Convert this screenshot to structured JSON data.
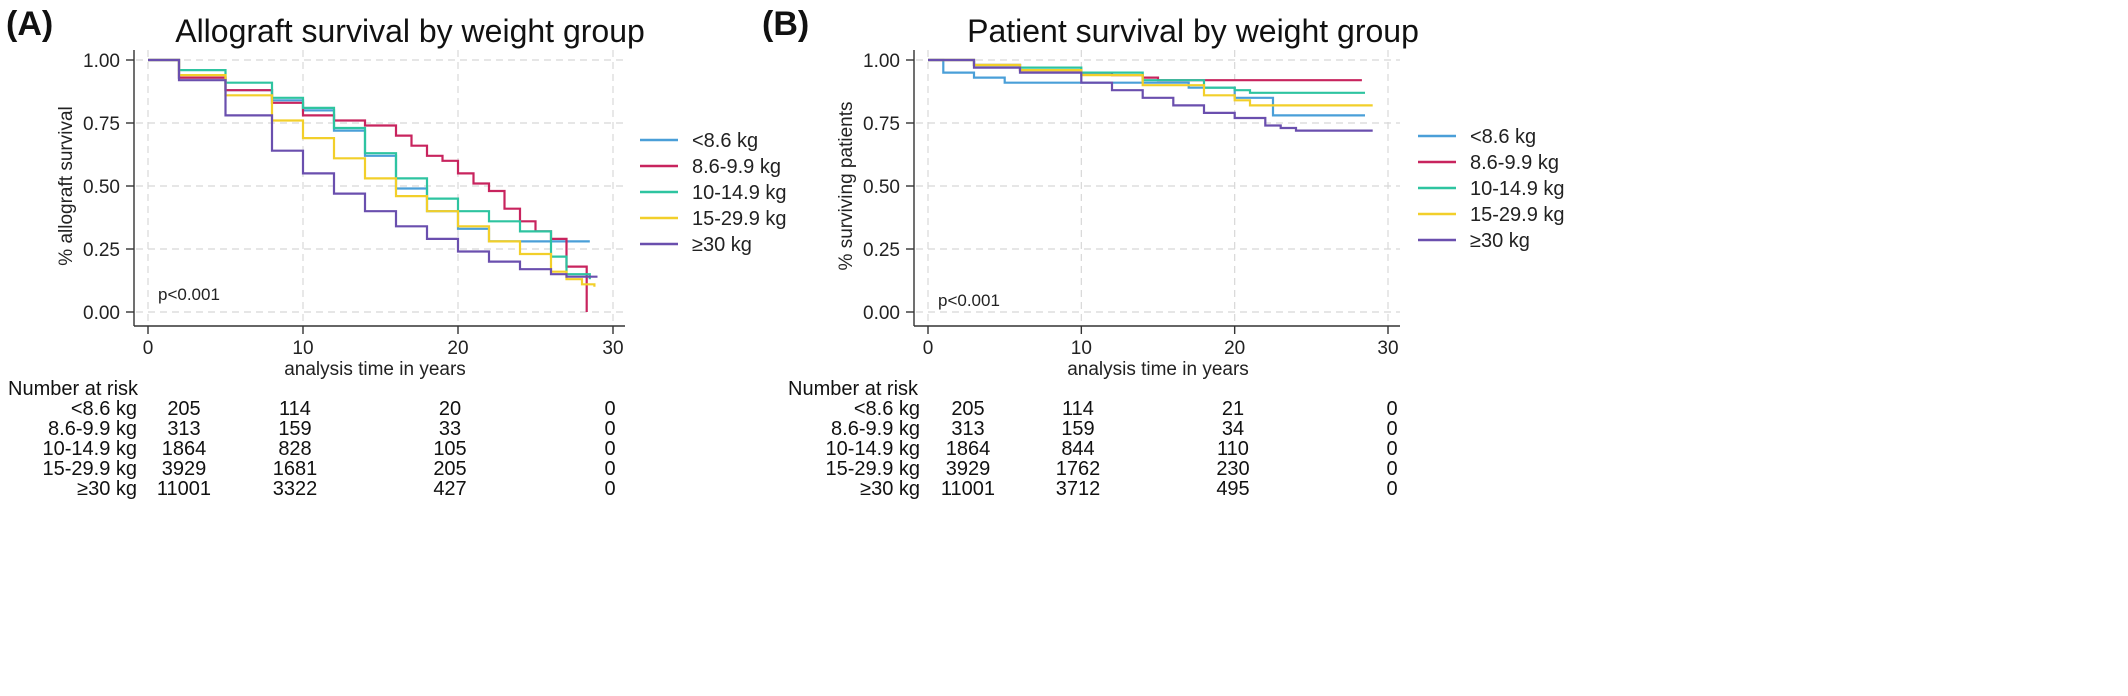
{
  "series_colors": [
    "#4a9fd8",
    "#c8245e",
    "#2ec4a0",
    "#f2cf2a",
    "#6a4fae"
  ],
  "chart_data": [
    {
      "type": "line",
      "panel_label": "(A)",
      "title": "Allograft survival by weight group",
      "xlabel": "analysis time in years",
      "ylabel": "% allograft survival",
      "xlim": [
        0,
        30
      ],
      "ylim": [
        0,
        1
      ],
      "x_ticks": [
        "0",
        "10",
        "20",
        "30"
      ],
      "y_ticks": [
        "0.00",
        "0.25",
        "0.50",
        "0.75",
        "1.00"
      ],
      "grid": true,
      "legend_position": "right",
      "annotation": "p<0.001",
      "series": [
        {
          "name": "<8.6 kg",
          "x": [
            0,
            2,
            5,
            8,
            10,
            12,
            14,
            16,
            18,
            20,
            22,
            28.5
          ],
          "y": [
            1.0,
            0.93,
            0.88,
            0.84,
            0.8,
            0.72,
            0.62,
            0.49,
            0.4,
            0.33,
            0.28,
            0.28
          ]
        },
        {
          "name": "8.6-9.9 kg",
          "x": [
            0,
            2,
            5,
            8,
            10,
            12,
            14,
            16,
            17,
            18,
            19,
            20,
            21,
            22,
            23,
            24,
            25,
            26,
            27,
            28.3,
            28.3
          ],
          "y": [
            1.0,
            0.93,
            0.88,
            0.83,
            0.78,
            0.76,
            0.74,
            0.7,
            0.66,
            0.62,
            0.6,
            0.55,
            0.51,
            0.48,
            0.41,
            0.36,
            0.32,
            0.29,
            0.18,
            0.18,
            0.0
          ]
        },
        {
          "name": "10-14.9 kg",
          "x": [
            0,
            2,
            5,
            8,
            10,
            12,
            14,
            16,
            18,
            20,
            22,
            24,
            26,
            27,
            28.5
          ],
          "y": [
            1.0,
            0.96,
            0.91,
            0.85,
            0.81,
            0.73,
            0.63,
            0.53,
            0.45,
            0.4,
            0.36,
            0.32,
            0.22,
            0.15,
            0.13
          ]
        },
        {
          "name": "15-29.9 kg",
          "x": [
            0,
            2,
            5,
            8,
            10,
            12,
            14,
            16,
            18,
            20,
            22,
            24,
            26,
            27,
            28,
            28.8
          ],
          "y": [
            1.0,
            0.94,
            0.86,
            0.76,
            0.69,
            0.61,
            0.53,
            0.46,
            0.4,
            0.34,
            0.28,
            0.23,
            0.16,
            0.13,
            0.11,
            0.1
          ]
        },
        {
          "name": "≥30 kg",
          "x": [
            0,
            2,
            5,
            8,
            10,
            12,
            14,
            16,
            18,
            20,
            22,
            24,
            26,
            27,
            28,
            29
          ],
          "y": [
            1.0,
            0.92,
            0.78,
            0.64,
            0.55,
            0.47,
            0.4,
            0.34,
            0.29,
            0.24,
            0.2,
            0.17,
            0.15,
            0.14,
            0.14,
            0.14
          ]
        }
      ],
      "risk_table": {
        "header": "Number at risk",
        "rows": [
          {
            "label": "<8.6 kg",
            "values": [
              "205",
              "114",
              "20",
              "0"
            ]
          },
          {
            "label": "8.6-9.9 kg",
            "values": [
              "313",
              "159",
              "33",
              "0"
            ]
          },
          {
            "label": "10-14.9 kg",
            "values": [
              "1864",
              "828",
              "105",
              "0"
            ]
          },
          {
            "label": "15-29.9 kg",
            "values": [
              "3929",
              "1681",
              "205",
              "0"
            ]
          },
          {
            "label": "≥30 kg",
            "values": [
              "11001",
              "3322",
              "427",
              "0"
            ]
          }
        ]
      }
    },
    {
      "type": "line",
      "panel_label": "(B)",
      "title": "Patient survival by weight group",
      "xlabel": "analysis time in years",
      "ylabel": "% surviving patients",
      "xlim": [
        0,
        30
      ],
      "ylim": [
        0,
        1
      ],
      "x_ticks": [
        "0",
        "10",
        "20",
        "30"
      ],
      "y_ticks": [
        "0.00",
        "0.25",
        "0.50",
        "0.75",
        "1.00"
      ],
      "grid": true,
      "legend_position": "right",
      "annotation": "p<0.001",
      "series": [
        {
          "name": "<8.6 kg",
          "x": [
            0,
            1,
            3,
            5,
            10,
            14,
            17,
            20,
            22,
            22.5,
            26,
            28.5
          ],
          "y": [
            1.0,
            0.95,
            0.93,
            0.91,
            0.91,
            0.91,
            0.89,
            0.85,
            0.85,
            0.78,
            0.78,
            0.78
          ]
        },
        {
          "name": "8.6-9.9 kg",
          "x": [
            0,
            3,
            6,
            10,
            12,
            14,
            15,
            28.3
          ],
          "y": [
            1.0,
            0.98,
            0.96,
            0.95,
            0.94,
            0.93,
            0.92,
            0.92
          ]
        },
        {
          "name": "10-14.9 kg",
          "x": [
            0,
            3,
            6,
            10,
            14,
            18,
            20,
            21,
            22,
            28.5
          ],
          "y": [
            1.0,
            0.98,
            0.97,
            0.95,
            0.92,
            0.89,
            0.88,
            0.87,
            0.87,
            0.87
          ]
        },
        {
          "name": "15-29.9 kg",
          "x": [
            0,
            3,
            6,
            10,
            14,
            18,
            20,
            21,
            23,
            29
          ],
          "y": [
            1.0,
            0.98,
            0.96,
            0.94,
            0.9,
            0.86,
            0.84,
            0.82,
            0.82,
            0.82
          ]
        },
        {
          "name": "≥30 kg",
          "x": [
            0,
            3,
            6,
            10,
            12,
            14,
            16,
            18,
            20,
            22,
            23,
            24,
            26,
            29
          ],
          "y": [
            1.0,
            0.97,
            0.95,
            0.91,
            0.88,
            0.85,
            0.82,
            0.79,
            0.77,
            0.74,
            0.73,
            0.72,
            0.72,
            0.72
          ]
        }
      ],
      "risk_table": {
        "header": "Number at risk",
        "rows": [
          {
            "label": "<8.6 kg",
            "values": [
              "205",
              "114",
              "21",
              "0"
            ]
          },
          {
            "label": "8.6-9.9 kg",
            "values": [
              "313",
              "159",
              "34",
              "0"
            ]
          },
          {
            "label": "10-14.9 kg",
            "values": [
              "1864",
              "844",
              "110",
              "0"
            ]
          },
          {
            "label": "15-29.9 kg",
            "values": [
              "3929",
              "1762",
              "230",
              "0"
            ]
          },
          {
            "label": "≥30 kg",
            "values": [
              "11001",
              "3712",
              "495",
              "0"
            ]
          }
        ]
      }
    }
  ]
}
